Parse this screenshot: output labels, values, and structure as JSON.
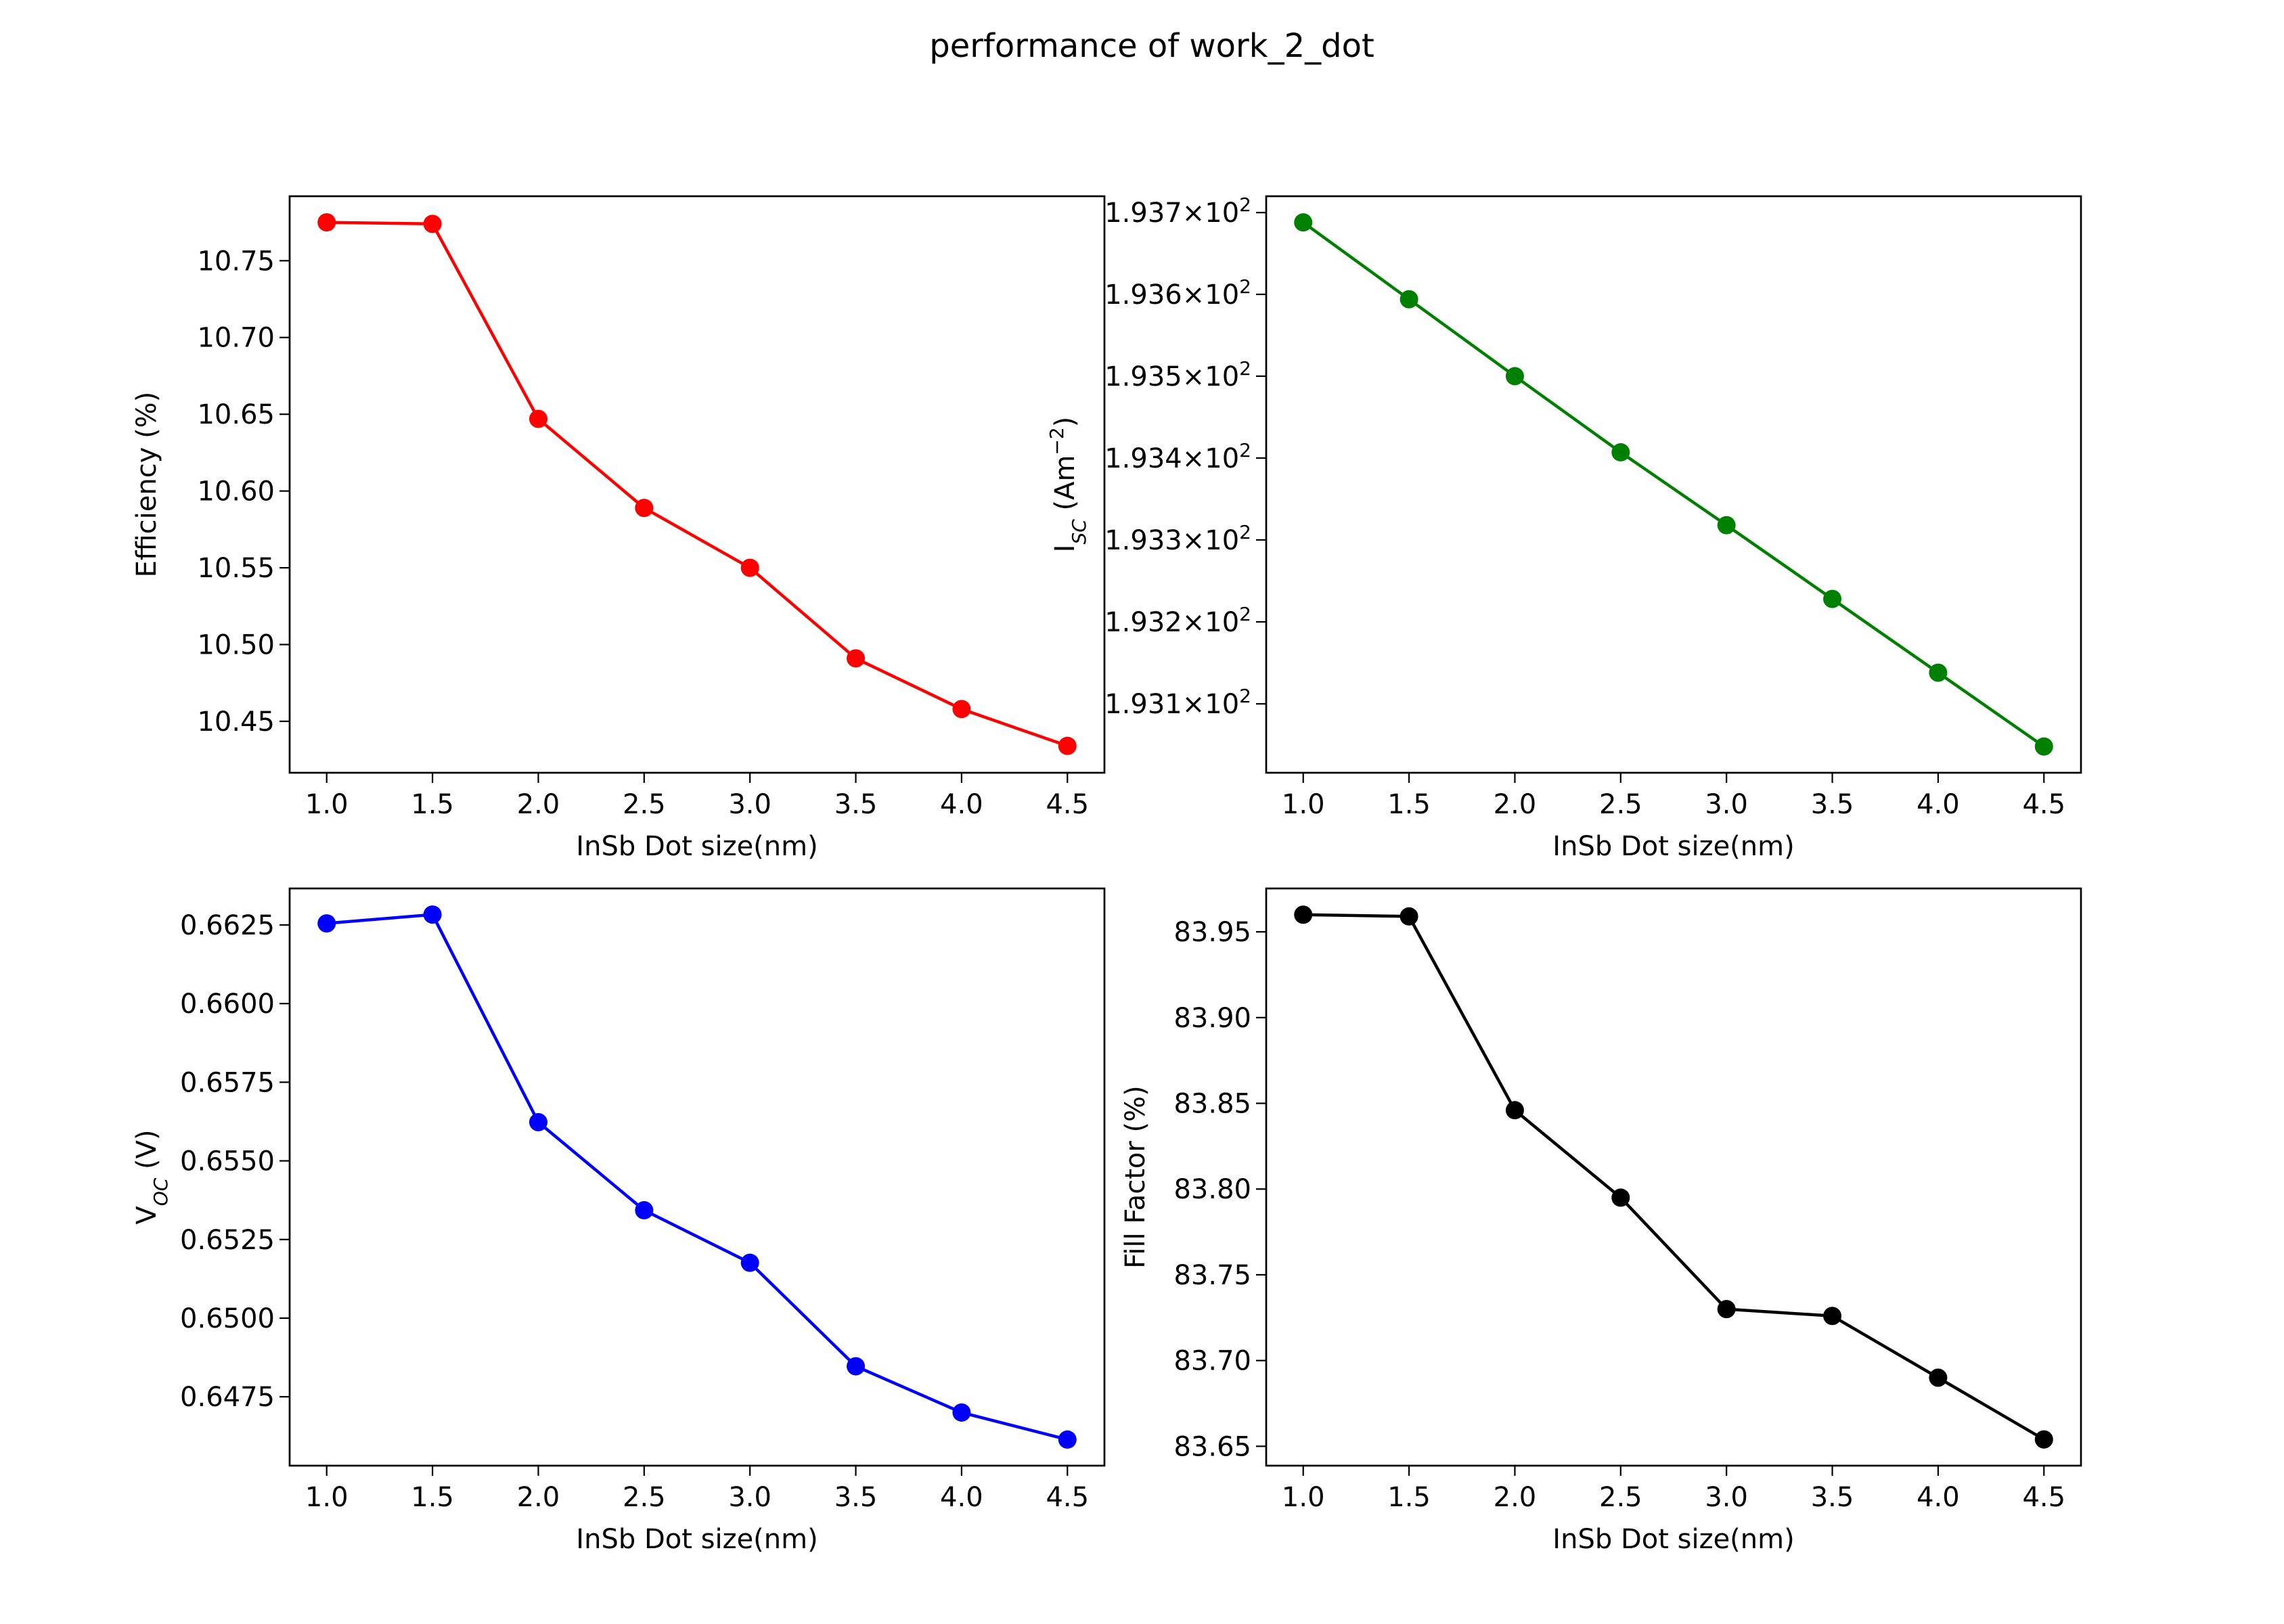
{
  "figure": {
    "title": "performance of work_2_dot"
  },
  "chart_data": [
    {
      "type": "line",
      "x": [
        1.0,
        1.5,
        2.0,
        2.5,
        3.0,
        3.5,
        4.0,
        4.5
      ],
      "series": [
        {
          "values": [
            10.775,
            10.774,
            10.647,
            10.589,
            10.55,
            10.491,
            10.458,
            10.434
          ]
        }
      ],
      "color": "#ff0000",
      "xlabel": "InSb Dot size(nm)",
      "ylabel": "Efficiency (%)",
      "xlim": [
        0.825,
        4.675
      ],
      "ylim": [
        10.4165,
        10.792
      ],
      "xticks": [
        1.0,
        1.5,
        2.0,
        2.5,
        3.0,
        3.5,
        4.0,
        4.5
      ],
      "xtick_labels": [
        "1.0",
        "1.5",
        "2.0",
        "2.5",
        "3.0",
        "3.5",
        "4.0",
        "4.5"
      ],
      "yticks": [
        10.45,
        10.5,
        10.55,
        10.6,
        10.65,
        10.7,
        10.75
      ],
      "ytick_labels": [
        "10.45",
        "10.50",
        "10.55",
        "10.60",
        "10.65",
        "10.70",
        "10.75"
      ],
      "grid": false
    },
    {
      "type": "line",
      "x": [
        1.0,
        1.5,
        2.0,
        2.5,
        3.0,
        3.5,
        4.0,
        4.5
      ],
      "series": [
        {
          "values": [
            193.688,
            193.594,
            193.5,
            193.407,
            193.318,
            193.228,
            193.138,
            193.048
          ]
        }
      ],
      "color": "#008000",
      "xlabel": "InSb Dot size(nm)",
      "ylabel": "I_SC (Am⁻²)",
      "ylabel_main": "I",
      "ylabel_sub": "SC",
      "ylabel_rest": " (Am",
      "ylabel_sup": "−2",
      "ylabel_end": ")",
      "yscale": "log",
      "xlim": [
        0.825,
        4.675
      ],
      "ylim": [
        193.016,
        193.72
      ],
      "xticks": [
        1.0,
        1.5,
        2.0,
        2.5,
        3.0,
        3.5,
        4.0,
        4.5
      ],
      "xtick_labels": [
        "1.0",
        "1.5",
        "2.0",
        "2.5",
        "3.0",
        "3.5",
        "4.0",
        "4.5"
      ],
      "yticks": [
        193.1,
        193.2,
        193.3,
        193.4,
        193.5,
        193.6,
        193.7
      ],
      "ytick_mantissas": [
        "1.931",
        "1.932",
        "1.933",
        "1.934",
        "1.935",
        "1.936",
        "1.937"
      ],
      "ytick_times": "×",
      "ytick_base": "10",
      "ytick_exp": "2",
      "grid": false
    },
    {
      "type": "line",
      "x": [
        1.0,
        1.5,
        2.0,
        2.5,
        3.0,
        3.5,
        4.0,
        4.5
      ],
      "series": [
        {
          "values": [
            0.66255,
            0.66283,
            0.65623,
            0.65343,
            0.65176,
            0.64847,
            0.647,
            0.64614
          ]
        }
      ],
      "color": "#0000ff",
      "xlabel": "InSb Dot size(nm)",
      "ylabel": "V_OC (V)",
      "ylabel_main": "V",
      "ylabel_sub": "OC",
      "ylabel_rest": " (V)",
      "xlim": [
        0.825,
        4.675
      ],
      "ylim": [
        0.64531,
        0.66366
      ],
      "xticks": [
        1.0,
        1.5,
        2.0,
        2.5,
        3.0,
        3.5,
        4.0,
        4.5
      ],
      "xtick_labels": [
        "1.0",
        "1.5",
        "2.0",
        "2.5",
        "3.0",
        "3.5",
        "4.0",
        "4.5"
      ],
      "yticks": [
        0.6475,
        0.65,
        0.6525,
        0.655,
        0.6575,
        0.66,
        0.6625
      ],
      "ytick_labels": [
        "0.6475",
        "0.6500",
        "0.6525",
        "0.6550",
        "0.6575",
        "0.6600",
        "0.6625"
      ],
      "grid": false
    },
    {
      "type": "line",
      "x": [
        1.0,
        1.5,
        2.0,
        2.5,
        3.0,
        3.5,
        4.0,
        4.5
      ],
      "series": [
        {
          "values": [
            83.96,
            83.959,
            83.846,
            83.795,
            83.73,
            83.726,
            83.69,
            83.654
          ]
        }
      ],
      "color": "#000000",
      "xlabel": "InSb Dot size(nm)",
      "ylabel": "Fill Factor (%)",
      "xlim": [
        0.825,
        4.675
      ],
      "ylim": [
        83.6387,
        83.9753
      ],
      "xticks": [
        1.0,
        1.5,
        2.0,
        2.5,
        3.0,
        3.5,
        4.0,
        4.5
      ],
      "xtick_labels": [
        "1.0",
        "1.5",
        "2.0",
        "2.5",
        "3.0",
        "3.5",
        "4.0",
        "4.5"
      ],
      "yticks": [
        83.65,
        83.7,
        83.75,
        83.8,
        83.85,
        83.9,
        83.95
      ],
      "ytick_labels": [
        "83.65",
        "83.70",
        "83.75",
        "83.80",
        "83.85",
        "83.90",
        "83.95"
      ],
      "grid": false
    }
  ]
}
